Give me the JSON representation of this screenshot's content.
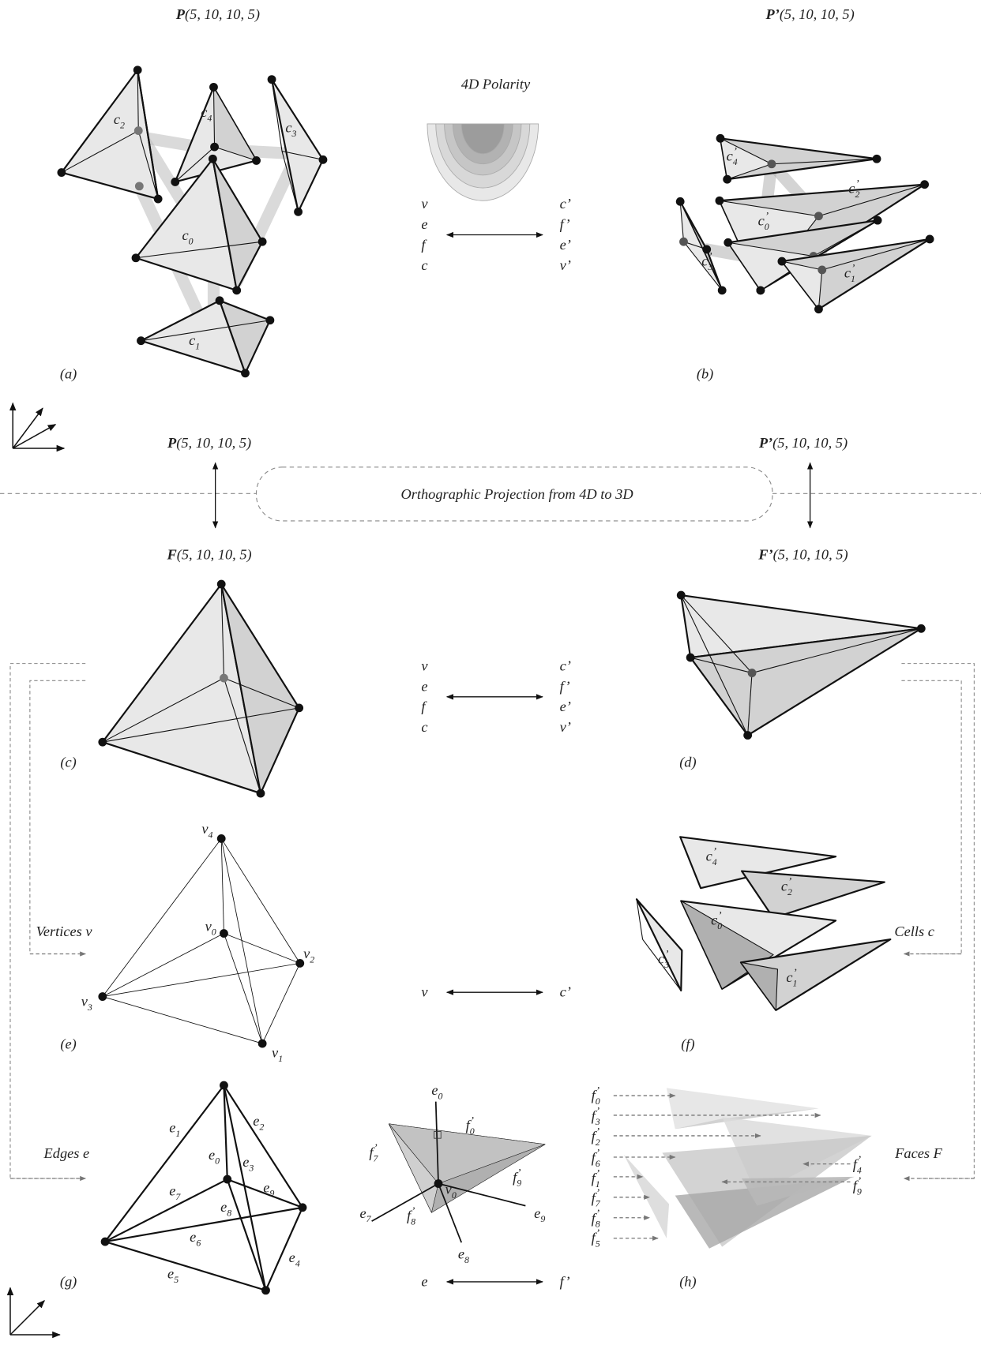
{
  "titles": [
    [
      "P",
      "(5, 10, 10, 5)"
    ],
    [
      "P’",
      "(5, 10, 10, 5)"
    ],
    [
      "P",
      "(5, 10, 10, 5)"
    ],
    [
      "P’",
      "(5, 10, 10, 5)"
    ],
    [
      "F",
      "(5, 10, 10, 5)"
    ],
    [
      "F’",
      "(5, 10, 10, 5)"
    ]
  ],
  "polarity_title": "4D Polarity",
  "duality_top": {
    "left": [
      "v",
      "e",
      "f",
      "c"
    ],
    "right": [
      "c’",
      "f’",
      "e’",
      "v’"
    ]
  },
  "duality_middle": {
    "left": [
      "v",
      "e",
      "f",
      "c"
    ],
    "right": [
      "c’",
      "f’",
      "e’",
      "v’"
    ]
  },
  "duality_vertices": {
    "left": [
      "v"
    ],
    "right": [
      "c’"
    ]
  },
  "duality_edges": {
    "left": [
      "e"
    ],
    "right": [
      "f’"
    ]
  },
  "projection_label": "Orthographic Projection from 4D to 3D",
  "captions": [
    "(a)",
    "(b)",
    "(c)",
    "(d)",
    "(e)",
    "(f)",
    "(g)",
    "(h)"
  ],
  "side_labels": [
    "Vertices v",
    "Edges e",
    "Cells c",
    "Faces F"
  ],
  "labels": {
    "a": [
      [
        "c",
        "2"
      ],
      [
        "c",
        "4"
      ],
      [
        "c",
        "3"
      ],
      [
        "c",
        "0"
      ],
      [
        "c",
        "1"
      ]
    ],
    "b": [
      [
        "c",
        "4",
        "’"
      ],
      [
        "c",
        "2",
        "’"
      ],
      [
        "c",
        "0",
        "’"
      ],
      [
        "c",
        "3",
        "’"
      ],
      [
        "c",
        "1",
        "’"
      ]
    ],
    "e": [
      [
        "v",
        "4"
      ],
      [
        "v",
        "0"
      ],
      [
        "v",
        "2"
      ],
      [
        "v",
        "3"
      ],
      [
        "v",
        "1"
      ]
    ],
    "f": [
      [
        "c",
        "4",
        "’"
      ],
      [
        "c",
        "2",
        "’"
      ],
      [
        "c",
        "0",
        "’"
      ],
      [
        "c",
        "3",
        "’"
      ],
      [
        "c",
        "1",
        "’"
      ]
    ],
    "g": [
      [
        "e",
        "1"
      ],
      [
        "e",
        "2"
      ],
      [
        "e",
        "0"
      ],
      [
        "e",
        "3"
      ],
      [
        "e",
        "7"
      ],
      [
        "e",
        "9"
      ],
      [
        "e",
        "8"
      ],
      [
        "e",
        "6"
      ],
      [
        "e",
        "4"
      ],
      [
        "e",
        "5"
      ]
    ],
    "center": [
      [
        "e",
        "0"
      ],
      [
        "f",
        "0",
        "’"
      ],
      [
        "f",
        "7",
        "’"
      ],
      [
        "v",
        "0"
      ],
      [
        "f",
        "9",
        "’"
      ],
      [
        "e",
        "7"
      ],
      [
        "f",
        "8",
        "’"
      ],
      [
        "e",
        "9"
      ],
      [
        "e",
        "8"
      ]
    ],
    "h": [
      [
        "f",
        "0",
        "’"
      ],
      [
        "f",
        "3",
        "’"
      ],
      [
        "f",
        "2",
        "’"
      ],
      [
        "f",
        "6",
        "’"
      ],
      [
        "f",
        "1",
        "’"
      ],
      [
        "f",
        "7",
        "’"
      ],
      [
        "f",
        "8",
        "’"
      ],
      [
        "f",
        "5",
        "’"
      ],
      [
        "f",
        "4",
        "’"
      ],
      [
        "f",
        "9",
        "’"
      ]
    ]
  }
}
